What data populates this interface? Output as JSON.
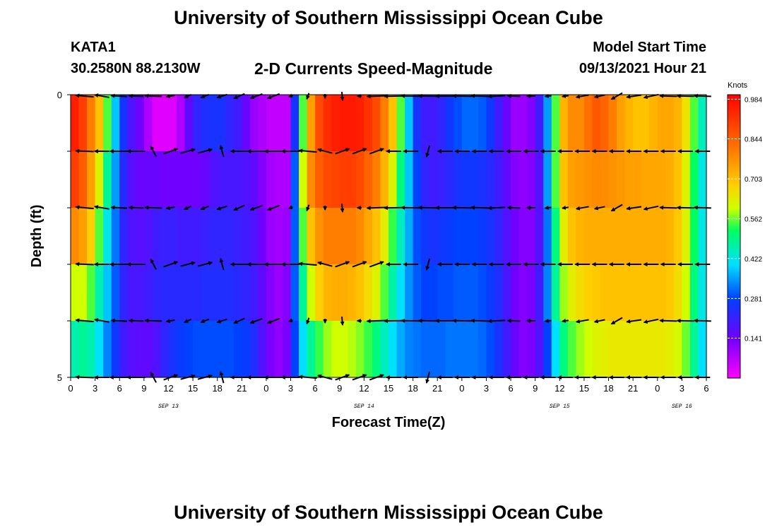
{
  "header": {
    "title": "University of Southern Mississippi Ocean Cube",
    "station": "KATA1",
    "coords": "30.2580N  88.2130W",
    "subtitle": "2-D Currents Speed-Magnitude",
    "model_start_label": "Model Start Time",
    "model_start_value": "09/13/2021 Hour 21"
  },
  "footer": {
    "title": "University of Southern Mississippi Ocean Cube"
  },
  "chart_data": {
    "type": "heatmap",
    "xlabel": "Forecast Time(Z)",
    "ylabel": "Depth (ft)",
    "x_range_hours": [
      0,
      78
    ],
    "y_range": [
      0,
      5
    ],
    "y_tick_labels": [
      "0",
      "5"
    ],
    "x_tick_labels": [
      "0",
      "3",
      "6",
      "9",
      "12",
      "15",
      "18",
      "21",
      "0",
      "3",
      "6",
      "9",
      "12",
      "15",
      "18",
      "21",
      "0",
      "3",
      "6",
      "9",
      "12",
      "15",
      "18",
      "21",
      "0",
      "3",
      "6"
    ],
    "date_labels": [
      {
        "label": "SEP 13",
        "hour": 12
      },
      {
        "label": "SEP 14",
        "hour": 36
      },
      {
        "label": "SEP 15",
        "hour": 60
      },
      {
        "label": "SEP 16",
        "hour": 75
      }
    ],
    "colorbar": {
      "unit": "Knots",
      "min": 0.0,
      "max": 1.0,
      "tick_labels": [
        "0.984",
        "0.844",
        "0.703",
        "0.562",
        "0.422",
        "0.281",
        "0.141"
      ],
      "tick_values": [
        0.984,
        0.844,
        0.703,
        0.562,
        0.422,
        0.281,
        0.141
      ]
    },
    "hours": [
      0,
      1,
      2,
      3,
      4,
      5,
      6,
      7,
      8,
      9,
      10,
      11,
      12,
      13,
      14,
      15,
      16,
      17,
      18,
      19,
      20,
      21,
      22,
      23,
      24,
      25,
      26,
      27,
      28,
      29,
      30,
      31,
      32,
      33,
      34,
      35,
      36,
      37,
      38,
      39,
      40,
      41,
      42,
      43,
      44,
      45,
      46,
      47,
      48,
      49,
      50,
      51,
      52,
      53,
      54,
      55,
      56,
      57,
      58,
      59,
      60,
      61,
      62,
      63,
      64,
      65,
      66,
      67,
      68,
      69,
      70,
      71,
      72,
      73,
      74,
      75,
      76,
      77
    ],
    "speed_rows": [
      [
        0.95,
        0.9,
        0.8,
        0.7,
        0.55,
        0.38,
        0.25,
        0.18,
        0.14,
        0.08,
        0.03,
        0.03,
        0.03,
        0.08,
        0.16,
        0.22,
        0.24,
        0.25,
        0.25,
        0.22,
        0.2,
        0.15,
        0.1,
        0.08,
        0.06,
        0.06,
        0.06,
        0.25,
        0.55,
        0.75,
        0.88,
        0.93,
        0.95,
        0.96,
        0.96,
        0.95,
        0.92,
        0.88,
        0.8,
        0.7,
        0.55,
        0.38,
        0.25,
        0.2,
        0.2,
        0.22,
        0.26,
        0.29,
        0.31,
        0.31,
        0.3,
        0.26,
        0.2,
        0.15,
        0.1,
        0.1,
        0.12,
        0.2,
        0.35,
        0.55,
        0.72,
        0.78,
        0.78,
        0.82,
        0.86,
        0.84,
        0.8,
        0.75,
        0.72,
        0.7,
        0.7,
        0.72,
        0.74,
        0.74,
        0.72,
        0.65,
        0.55,
        0.45
      ],
      [
        0.9,
        0.85,
        0.75,
        0.62,
        0.48,
        0.35,
        0.23,
        0.17,
        0.15,
        0.15,
        0.15,
        0.14,
        0.14,
        0.14,
        0.14,
        0.14,
        0.15,
        0.18,
        0.19,
        0.19,
        0.19,
        0.18,
        0.16,
        0.12,
        0.09,
        0.08,
        0.08,
        0.3,
        0.6,
        0.78,
        0.85,
        0.88,
        0.89,
        0.9,
        0.9,
        0.88,
        0.84,
        0.8,
        0.72,
        0.62,
        0.5,
        0.38,
        0.28,
        0.22,
        0.2,
        0.21,
        0.23,
        0.25,
        0.26,
        0.26,
        0.25,
        0.23,
        0.2,
        0.16,
        0.12,
        0.11,
        0.12,
        0.18,
        0.35,
        0.55,
        0.7,
        0.75,
        0.76,
        0.77,
        0.78,
        0.78,
        0.77,
        0.76,
        0.75,
        0.75,
        0.74,
        0.74,
        0.74,
        0.73,
        0.7,
        0.62,
        0.52,
        0.42
      ],
      [
        0.78,
        0.75,
        0.68,
        0.55,
        0.42,
        0.32,
        0.22,
        0.18,
        0.17,
        0.18,
        0.2,
        0.21,
        0.21,
        0.2,
        0.2,
        0.2,
        0.21,
        0.22,
        0.22,
        0.22,
        0.21,
        0.2,
        0.18,
        0.14,
        0.1,
        0.09,
        0.1,
        0.3,
        0.55,
        0.7,
        0.77,
        0.8,
        0.8,
        0.8,
        0.8,
        0.78,
        0.74,
        0.7,
        0.63,
        0.54,
        0.45,
        0.36,
        0.29,
        0.26,
        0.25,
        0.26,
        0.27,
        0.28,
        0.28,
        0.28,
        0.27,
        0.25,
        0.22,
        0.18,
        0.14,
        0.12,
        0.12,
        0.18,
        0.32,
        0.5,
        0.63,
        0.7,
        0.72,
        0.73,
        0.73,
        0.73,
        0.73,
        0.73,
        0.73,
        0.73,
        0.73,
        0.73,
        0.73,
        0.72,
        0.69,
        0.62,
        0.52,
        0.42
      ],
      [
        0.6,
        0.6,
        0.55,
        0.46,
        0.38,
        0.3,
        0.22,
        0.19,
        0.19,
        0.2,
        0.22,
        0.23,
        0.23,
        0.23,
        0.23,
        0.23,
        0.24,
        0.24,
        0.24,
        0.24,
        0.23,
        0.22,
        0.2,
        0.16,
        0.12,
        0.1,
        0.12,
        0.3,
        0.48,
        0.6,
        0.68,
        0.72,
        0.73,
        0.73,
        0.72,
        0.7,
        0.66,
        0.62,
        0.55,
        0.47,
        0.4,
        0.34,
        0.3,
        0.28,
        0.28,
        0.29,
        0.29,
        0.3,
        0.3,
        0.3,
        0.29,
        0.27,
        0.24,
        0.19,
        0.14,
        0.12,
        0.13,
        0.2,
        0.33,
        0.48,
        0.58,
        0.63,
        0.66,
        0.68,
        0.69,
        0.7,
        0.7,
        0.7,
        0.7,
        0.7,
        0.7,
        0.7,
        0.7,
        0.69,
        0.66,
        0.6,
        0.5,
        0.42
      ],
      [
        0.46,
        0.48,
        0.46,
        0.4,
        0.33,
        0.26,
        0.2,
        0.17,
        0.16,
        0.16,
        0.18,
        0.22,
        0.25,
        0.27,
        0.28,
        0.29,
        0.29,
        0.29,
        0.29,
        0.29,
        0.28,
        0.27,
        0.24,
        0.18,
        0.13,
        0.11,
        0.13,
        0.28,
        0.4,
        0.48,
        0.54,
        0.58,
        0.6,
        0.6,
        0.59,
        0.57,
        0.54,
        0.5,
        0.45,
        0.4,
        0.36,
        0.33,
        0.32,
        0.31,
        0.31,
        0.31,
        0.32,
        0.32,
        0.32,
        0.32,
        0.31,
        0.29,
        0.25,
        0.2,
        0.15,
        0.12,
        0.13,
        0.18,
        0.28,
        0.4,
        0.5,
        0.55,
        0.58,
        0.6,
        0.62,
        0.63,
        0.64,
        0.64,
        0.64,
        0.64,
        0.64,
        0.64,
        0.64,
        0.63,
        0.61,
        0.56,
        0.48,
        0.4
      ]
    ],
    "vector_rows": [
      {
        "angles": [
          175,
          170,
          177,
          178,
          178,
          190,
          203,
          201,
          198,
          204,
          200,
          201,
          200,
          250,
          270,
          275,
          180,
          182,
          181,
          179,
          179,
          180,
          179,
          178,
          183,
          178,
          180,
          187,
          188,
          190,
          192,
          210,
          188,
          192,
          178,
          179,
          178,
          177,
          179
        ],
        "mags": [
          0.85,
          0.7,
          0.75,
          0.7,
          0.8,
          0.4,
          0.35,
          0.4,
          0.5,
          0.55,
          0.6,
          0.6,
          0.2,
          0.3,
          0.2,
          0.4,
          0.2,
          0.9,
          0.9,
          0.9,
          0.9,
          0.9,
          0.9,
          0.8,
          0.8,
          0.6,
          0.4,
          0.3,
          0.3,
          0.6,
          0.5,
          0.6,
          0.7,
          0.7,
          0.8,
          0.8,
          0.8,
          0.8,
          0.8
        ]
      },
      {
        "angles": [
          178,
          180,
          180,
          180,
          118,
          20,
          15,
          15,
          105,
          180,
          180,
          180,
          180,
          175,
          165,
          20,
          20,
          20,
          180,
          180,
          255,
          180,
          180,
          180,
          180,
          180,
          180,
          180,
          180,
          180,
          180,
          180,
          180,
          180,
          180,
          180,
          180,
          180,
          180
        ],
        "mags": [
          0.85,
          0.7,
          0.85,
          0.85,
          0.55,
          0.7,
          0.7,
          0.7,
          0.55,
          0.8,
          0.85,
          0.85,
          0.85,
          0.85,
          0.7,
          0.7,
          0.7,
          0.7,
          0.7,
          0.7,
          0.55,
          0.7,
          0.7,
          0.7,
          0.7,
          0.7,
          0.7,
          0.7,
          0.7,
          0.7,
          0.7,
          0.7,
          0.7,
          0.7,
          0.7,
          0.7,
          0.7,
          0.7,
          0.7
        ]
      }
    ]
  }
}
